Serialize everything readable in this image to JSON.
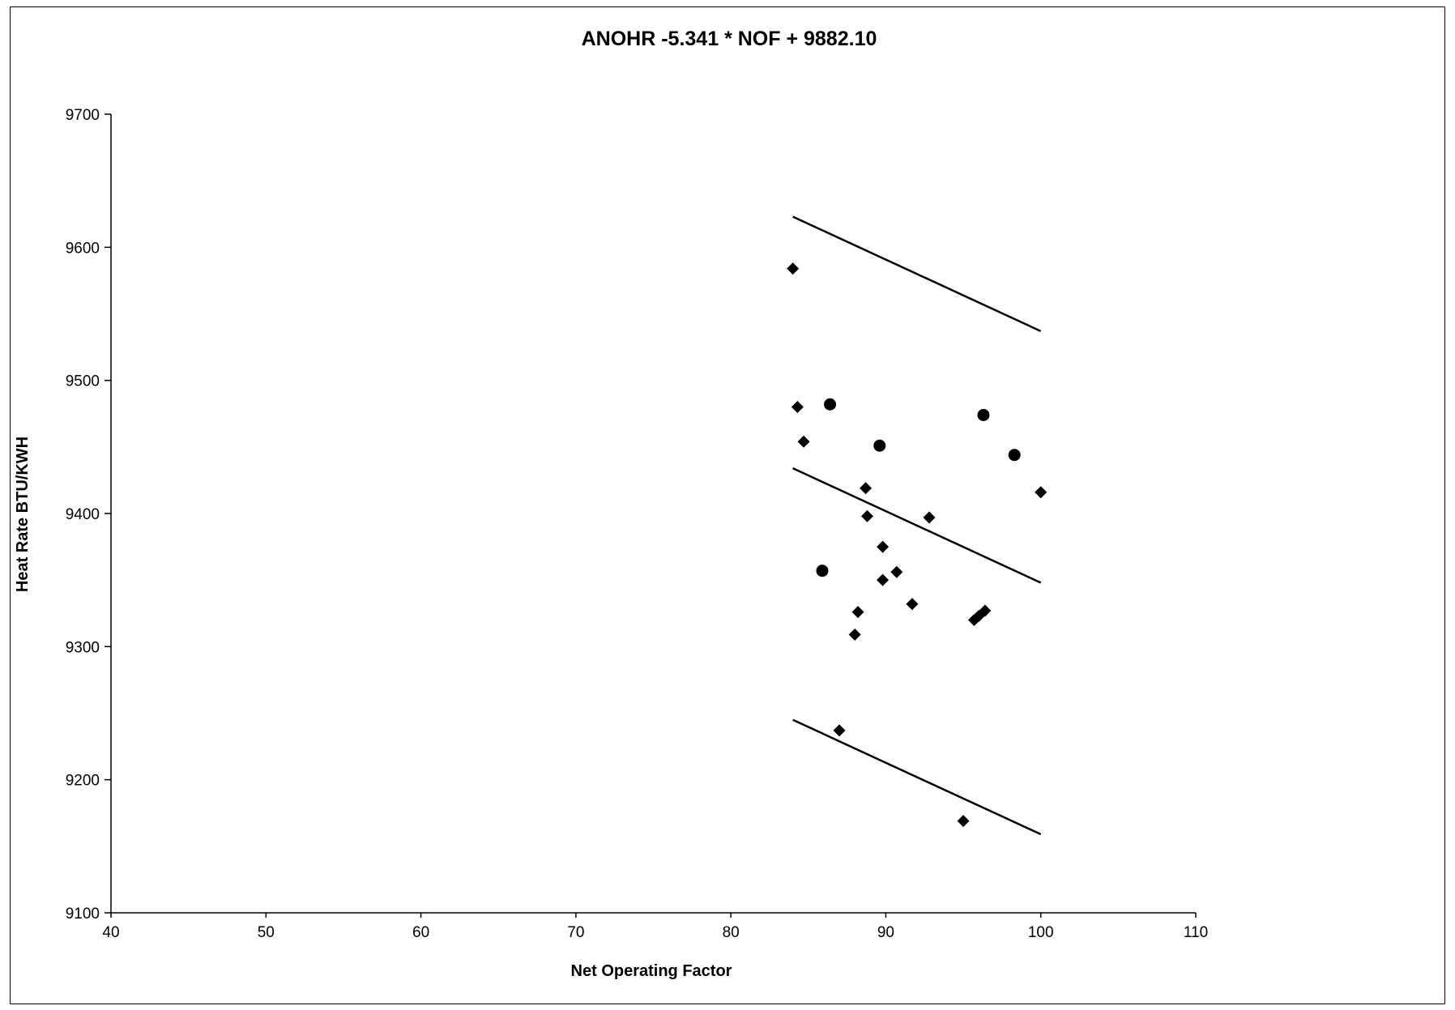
{
  "chart_data": {
    "type": "scatter",
    "title": "ANOHR -5.341 * NOF + 9882.10",
    "xlabel": "Net Operating Factor",
    "ylabel": "Heat Rate BTU/KWH",
    "xlim": [
      40,
      110
    ],
    "ylim": [
      9100,
      9700
    ],
    "x_ticks": [
      40,
      50,
      60,
      70,
      80,
      90,
      100,
      110
    ],
    "y_ticks": [
      9100,
      9200,
      9300,
      9400,
      9500,
      9600,
      9700
    ],
    "grid": false,
    "legend": "none",
    "series": [
      {
        "marker": "diamond",
        "points": [
          [
            84.0,
            9584
          ],
          [
            84.3,
            9480
          ],
          [
            84.7,
            9454
          ],
          [
            88.7,
            9419
          ],
          [
            88.8,
            9398
          ],
          [
            92.8,
            9397
          ],
          [
            89.8,
            9375
          ],
          [
            90.7,
            9356
          ],
          [
            89.8,
            9350
          ],
          [
            91.7,
            9332
          ],
          [
            88.2,
            9326
          ],
          [
            88.0,
            9309
          ],
          [
            95.7,
            9320
          ],
          [
            96.0,
            9323
          ],
          [
            96.4,
            9327
          ],
          [
            100.0,
            9416
          ],
          [
            87.0,
            9237
          ],
          [
            95.0,
            9169
          ]
        ]
      },
      {
        "marker": "circle",
        "points": [
          [
            86.4,
            9482
          ],
          [
            89.6,
            9451
          ],
          [
            96.3,
            9474
          ],
          [
            98.3,
            9444
          ],
          [
            85.9,
            9357
          ]
        ]
      }
    ],
    "lines": [
      {
        "role": "upper",
        "x": [
          84.0,
          100.0
        ],
        "y": [
          9623,
          9537
        ]
      },
      {
        "role": "fit",
        "x": [
          84.0,
          100.0
        ],
        "y": [
          9434,
          9348
        ]
      },
      {
        "role": "lower",
        "x": [
          84.0,
          100.0
        ],
        "y": [
          9245,
          9159
        ]
      }
    ]
  }
}
